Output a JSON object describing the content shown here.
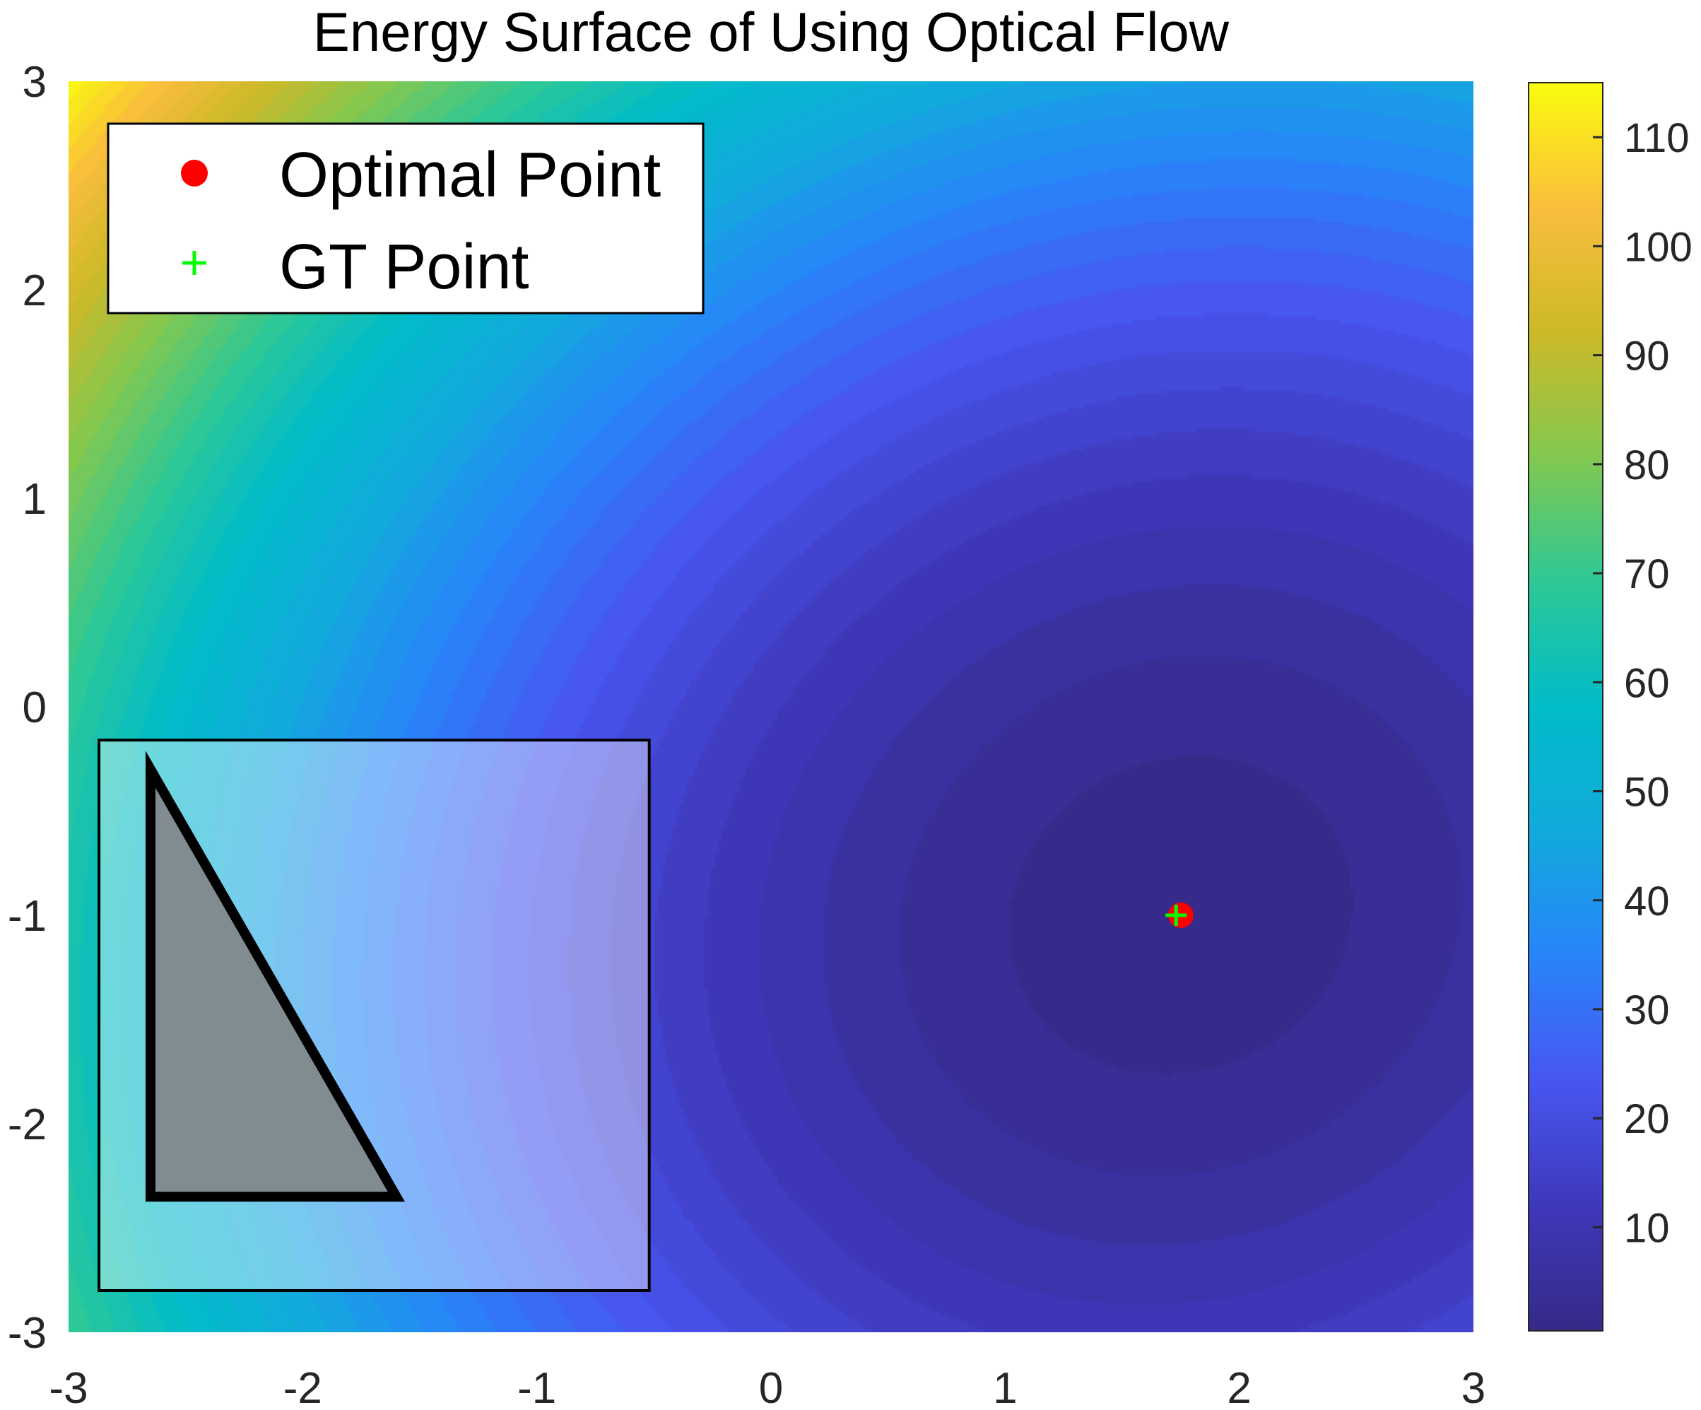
{
  "chart_data": {
    "type": "heatmap",
    "title": "Energy Surface of Using Optical Flow",
    "xlabel": "",
    "ylabel": "",
    "xlim": [
      -3,
      3
    ],
    "ylim": [
      -3,
      3
    ],
    "x_ticks": [
      -3,
      -2,
      -1,
      0,
      1,
      2,
      3
    ],
    "y_ticks": [
      -3,
      -2,
      -1,
      0,
      1,
      2,
      3
    ],
    "colorbar": {
      "range": [
        0.5,
        115
      ],
      "ticks": [
        10,
        20,
        30,
        40,
        50,
        60,
        70,
        80,
        90,
        100,
        110
      ],
      "colormap": "parula"
    },
    "surface": {
      "minimum": [
        1.75,
        -1.0
      ],
      "min_value": 1,
      "corner_values": {
        "top_left": 115,
        "top_right": 45,
        "bottom_left": 70,
        "bottom_right": 15
      }
    },
    "legend": {
      "position": "top-left",
      "entries": [
        {
          "label": "Optimal Point",
          "marker": "filled-circle",
          "color": "#ff0000"
        },
        {
          "label": "GT Point",
          "marker": "plus",
          "color": "#00ff00"
        }
      ]
    },
    "points": [
      {
        "name": "Optimal Point",
        "x": 1.75,
        "y": -1.0,
        "color": "#ff0000"
      },
      {
        "name": "GT Point",
        "x": 1.73,
        "y": -1.0,
        "color": "#00ff00"
      }
    ],
    "inset": {
      "description": "semi-transparent overlay with triangle",
      "x_range": [
        -2.87,
        -0.52
      ],
      "y_range": [
        -2.8,
        -0.16
      ],
      "triangle": [
        [
          -2.65,
          -0.3
        ],
        [
          -2.65,
          -2.35
        ],
        [
          -1.6,
          -2.35
        ]
      ],
      "triangle_fill": "#808c90",
      "triangle_stroke": "#000000"
    }
  }
}
